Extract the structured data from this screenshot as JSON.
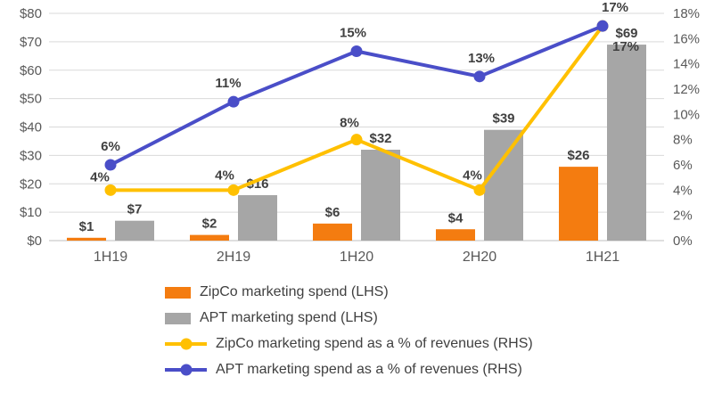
{
  "chart_data": {
    "type": "combo-bar-line",
    "categories": [
      "1H19",
      "2H19",
      "1H20",
      "2H20",
      "1H21"
    ],
    "left_axis": {
      "min": 0,
      "max": 80,
      "ticks": [
        "$0",
        "$10",
        "$20",
        "$30",
        "$40",
        "$50",
        "$60",
        "$70",
        "$80"
      ]
    },
    "right_axis": {
      "min": 0,
      "max": 18,
      "ticks": [
        "0%",
        "2%",
        "4%",
        "6%",
        "8%",
        "10%",
        "12%",
        "14%",
        "16%",
        "18%"
      ]
    },
    "bar_series": [
      {
        "name": "ZipCo marketing spend (LHS)",
        "color": "#F47C10",
        "values": [
          1,
          2,
          6,
          4,
          26
        ],
        "labels": [
          "$1",
          "$2",
          "$6",
          "$4",
          "$26"
        ]
      },
      {
        "name": "APT marketing spend (LHS)",
        "color": "#A6A6A6",
        "values": [
          7,
          16,
          32,
          39,
          69
        ],
        "labels": [
          "$7",
          "$16",
          "$32",
          "$39",
          "$69"
        ]
      }
    ],
    "line_series": [
      {
        "name": "ZipCo marketing spend as a % of revenues (RHS)",
        "color": "#FFC000",
        "values": [
          4,
          4,
          8,
          4,
          17
        ],
        "labels": [
          "4%",
          "4%",
          "8%",
          "4%",
          "17%"
        ],
        "label_dx": [
          -12,
          -10,
          -8,
          -8,
          26
        ],
        "label_dy": [
          -10,
          -12,
          -14,
          -12,
          28
        ]
      },
      {
        "name": "APT marketing spend as a % of revenues (RHS)",
        "color": "#4A4EC8",
        "values": [
          6,
          11,
          15,
          13,
          17
        ],
        "labels": [
          "6%",
          "11%",
          "15%",
          "13%",
          "17%"
        ],
        "label_dx": [
          0,
          -6,
          -4,
          2,
          14
        ],
        "label_dy": [
          -16,
          -16,
          -16,
          -16,
          -16
        ]
      }
    ],
    "legend": [
      {
        "label": "ZipCo marketing spend (LHS)",
        "type": "bar",
        "color": "#F47C10"
      },
      {
        "label": "APT marketing spend (LHS)",
        "type": "bar",
        "color": "#A6A6A6"
      },
      {
        "label": "ZipCo marketing spend as a % of revenues (RHS)",
        "type": "line",
        "color": "#FFC000"
      },
      {
        "label": "APT marketing spend as a % of revenues (RHS)",
        "type": "line",
        "color": "#4A4EC8"
      }
    ],
    "grid": true,
    "legend_position": "bottom-left",
    "label_color": "#404040",
    "axis_text_color": "#595959",
    "gridline_color": "#D9D9D9",
    "axis_line_color": "#BFBFBF"
  }
}
